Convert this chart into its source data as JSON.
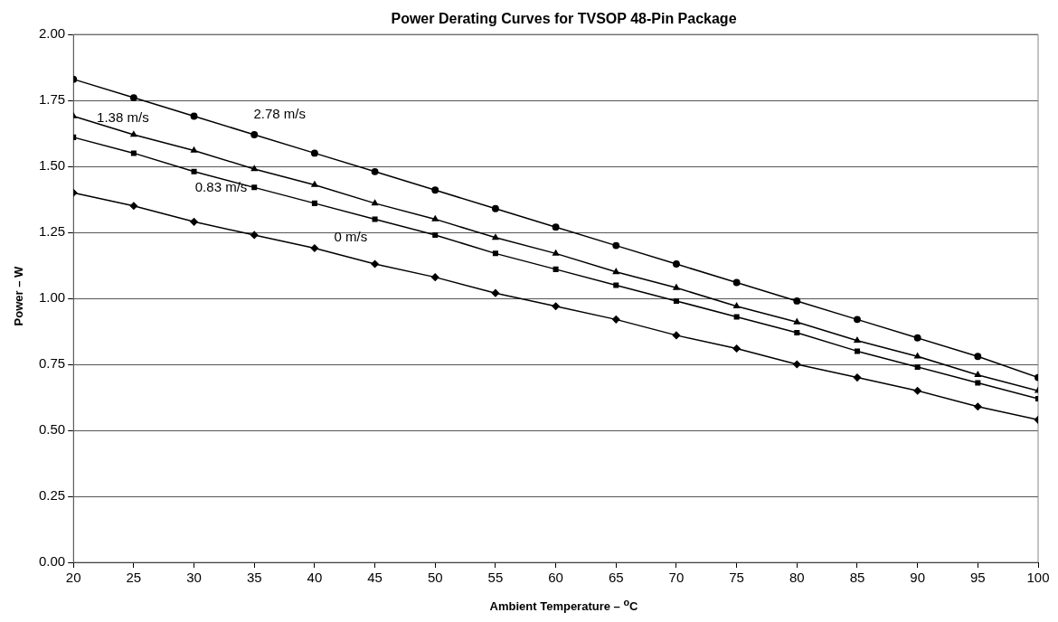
{
  "chart_data": {
    "type": "line",
    "title": "Power Derating  Curves for TVSOP 48-Pin Package",
    "xlabel": "Ambient Temperature – $^{o}$C",
    "ylabel": "Power – W",
    "x": [
      20,
      25,
      30,
      35,
      40,
      45,
      50,
      55,
      60,
      65,
      70,
      75,
      80,
      85,
      90,
      95,
      100
    ],
    "xlim": [
      20,
      100
    ],
    "xticks": [
      20,
      25,
      30,
      35,
      40,
      45,
      50,
      55,
      60,
      65,
      70,
      75,
      80,
      85,
      90,
      95,
      100
    ],
    "ylim": [
      0,
      2
    ],
    "yticks": [
      {
        "value": 0,
        "label": "0.00"
      },
      {
        "value": 0.25,
        "label": "0.25"
      },
      {
        "value": 0.5,
        "label": "0.50"
      },
      {
        "value": 0.75,
        "label": "0.75"
      },
      {
        "value": 1,
        "label": "1.00"
      },
      {
        "value": 1.25,
        "label": "1.25"
      },
      {
        "value": 1.5,
        "label": "1.50"
      },
      {
        "value": 1.75,
        "label": "1.75"
      },
      {
        "value": 2,
        "label": "2.00"
      }
    ],
    "grid": "y",
    "legend": false,
    "line_style": "solid",
    "series": [
      {
        "name": "2.78 m/s",
        "color": "#000000",
        "marker": "circle",
        "values": [
          1.83,
          1.76,
          1.69,
          1.62,
          1.55,
          1.48,
          1.41,
          1.34,
          1.27,
          1.2,
          1.13,
          1.06,
          0.99,
          0.92,
          0.85,
          0.78,
          0.7
        ]
      },
      {
        "name": "1.38 m/s",
        "color": "#000000",
        "marker": "triangle",
        "values": [
          1.69,
          1.62,
          1.56,
          1.49,
          1.43,
          1.36,
          1.3,
          1.23,
          1.17,
          1.1,
          1.04,
          0.97,
          0.91,
          0.84,
          0.78,
          0.71,
          0.65
        ]
      },
      {
        "name": "0.83 m/s",
        "color": "#000000",
        "marker": "square",
        "values": [
          1.61,
          1.55,
          1.48,
          1.42,
          1.36,
          1.3,
          1.24,
          1.17,
          1.11,
          1.05,
          0.99,
          0.93,
          0.87,
          0.8,
          0.74,
          0.68,
          0.62
        ]
      },
      {
        "name": "0 m/s",
        "color": "#000000",
        "marker": "diamond",
        "values": [
          1.4,
          1.35,
          1.29,
          1.24,
          1.19,
          1.13,
          1.08,
          1.02,
          0.97,
          0.92,
          0.86,
          0.81,
          0.75,
          0.7,
          0.65,
          0.59,
          0.54
        ]
      }
    ]
  }
}
